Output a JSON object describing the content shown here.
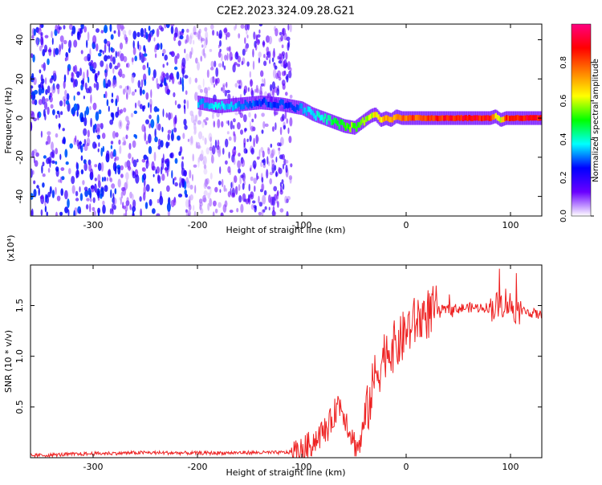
{
  "chart_data": [
    {
      "type": "heatmap",
      "title": "C2E2.2023.324.09.28.G21",
      "xlabel": "Height of straight line (km)",
      "ylabel": "Frequency (Hz)",
      "xlim": [
        -360,
        130
      ],
      "ylim": [
        -50,
        48
      ],
      "xticks": [
        -300,
        -200,
        -100,
        0,
        100
      ],
      "yticks": [
        -40,
        -20,
        0,
        20,
        40
      ],
      "colorbar": {
        "label": "Normalized spectral amplitude",
        "range": [
          0,
          1
        ],
        "ticks": [
          0.0,
          0.2,
          0.4,
          0.6,
          0.8
        ],
        "tick_labels": [
          "0.0",
          "0.2",
          "0.4",
          "0.6",
          "0.8"
        ],
        "colormap": [
          "#ffffff",
          "#6a00ff",
          "#0000ff",
          "#00ffff",
          "#00ff00",
          "#ffff00",
          "#ff8000",
          "#ff0000",
          "#ff0080"
        ]
      },
      "signal_track": {
        "x": [
          -200,
          -180,
          -160,
          -140,
          -120,
          -110,
          -100,
          -90,
          -80,
          -70,
          -60,
          -50,
          -45,
          -40,
          -35,
          -30,
          -25,
          -20,
          -15,
          -10,
          -5,
          0,
          20,
          50,
          80,
          85,
          90,
          95,
          100,
          130
        ],
        "y": [
          8,
          6,
          7,
          8,
          7,
          6,
          5,
          2,
          0,
          -2,
          -4,
          -5,
          -3,
          -1,
          1,
          2,
          -1,
          0,
          -1,
          1,
          0,
          0,
          0,
          0,
          0,
          1,
          -1,
          0,
          0,
          0
        ],
        "amplitude": [
          0.35,
          0.4,
          0.35,
          0.3,
          0.3,
          0.3,
          0.35,
          0.4,
          0.45,
          0.5,
          0.55,
          0.6,
          0.55,
          0.6,
          0.65,
          0.7,
          0.7,
          0.75,
          0.8,
          0.8,
          0.85,
          0.85,
          0.9,
          0.95,
          0.95,
          0.7,
          0.65,
          0.9,
          0.95,
          0.95
        ]
      },
      "noise_region_x": [
        -360,
        -110
      ]
    },
    {
      "type": "line",
      "xlabel": "Height of straight line (km)",
      "ylabel": "SNR (10 * v/v)",
      "multiplier_label": "(x10⁴)",
      "xlim": [
        -360,
        130
      ],
      "ylim": [
        0,
        19000
      ],
      "xticks": [
        -300,
        -200,
        -100,
        0,
        100
      ],
      "yticks": [
        5000,
        10000,
        15000
      ],
      "ytick_labels": [
        "0.5",
        "1.0",
        "1.5"
      ],
      "color": "#ee2222",
      "series": [
        {
          "x": [
            -360,
            -300,
            -250,
            -200,
            -150,
            -120,
            -100,
            -90,
            -80,
            -75,
            -70,
            -65,
            -60,
            -55,
            -50,
            -45,
            -40,
            -35,
            -30,
            -25,
            -20,
            -15,
            -10,
            -5,
            0,
            5,
            10,
            20,
            30,
            40,
            50,
            60,
            70,
            80,
            90,
            95,
            100,
            105,
            110,
            120,
            130
          ],
          "y": [
            200,
            400,
            500,
            450,
            500,
            500,
            600,
            1500,
            2500,
            3000,
            4000,
            5500,
            4500,
            3000,
            1500,
            1000,
            3500,
            5500,
            8000,
            9000,
            10500,
            10800,
            11000,
            11500,
            12500,
            13000,
            13500,
            14200,
            14500,
            14600,
            14700,
            14800,
            14800,
            14800,
            15000,
            15500,
            15000,
            14700,
            14500,
            14300,
            14000
          ]
        }
      ]
    }
  ]
}
